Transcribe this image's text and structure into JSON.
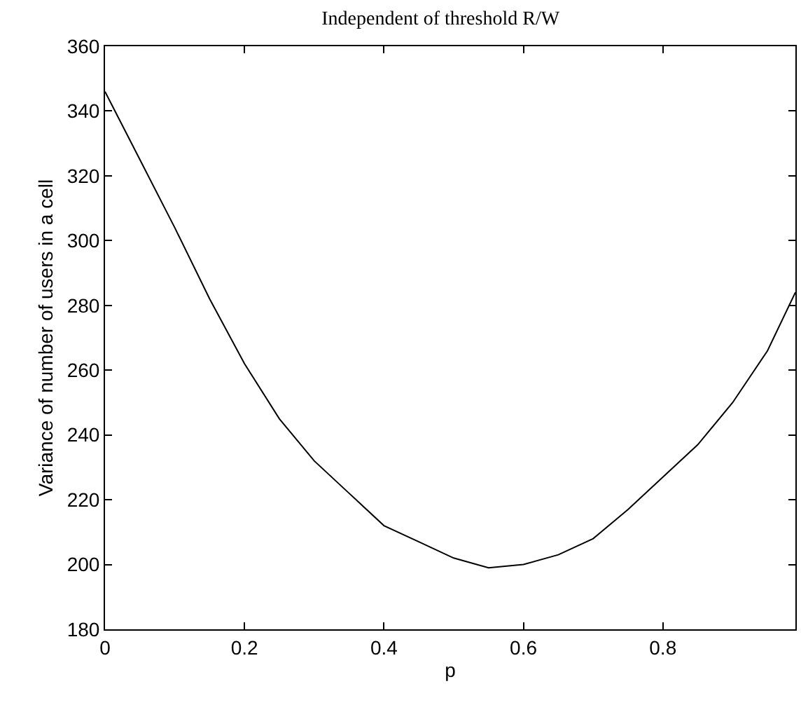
{
  "chart_data": {
    "type": "line",
    "title": "Independent of threshold R/W",
    "xlabel": "p",
    "ylabel": "Variance of number of users in a cell",
    "x": [
      0,
      0.05,
      0.1,
      0.15,
      0.2,
      0.25,
      0.3,
      0.35,
      0.4,
      0.45,
      0.5,
      0.55,
      0.6,
      0.65,
      0.7,
      0.75,
      0.8,
      0.85,
      0.9,
      0.95,
      0.99
    ],
    "series": [
      {
        "color": "#000000",
        "values": [
          346,
          325,
          304,
          282,
          262,
          245,
          232,
          222,
          212,
          207,
          202,
          199,
          200,
          203,
          208,
          217,
          227,
          237,
          250,
          266,
          284
        ]
      }
    ],
    "xlim": [
      0,
      0.99
    ],
    "xticks": [
      0,
      0.2,
      0.4,
      0.6,
      0.8
    ],
    "ylim": [
      180,
      360
    ],
    "yticks": [
      180,
      200,
      220,
      240,
      260,
      280,
      300,
      320,
      340,
      360
    ],
    "marker": "none",
    "line_style": "solid"
  }
}
